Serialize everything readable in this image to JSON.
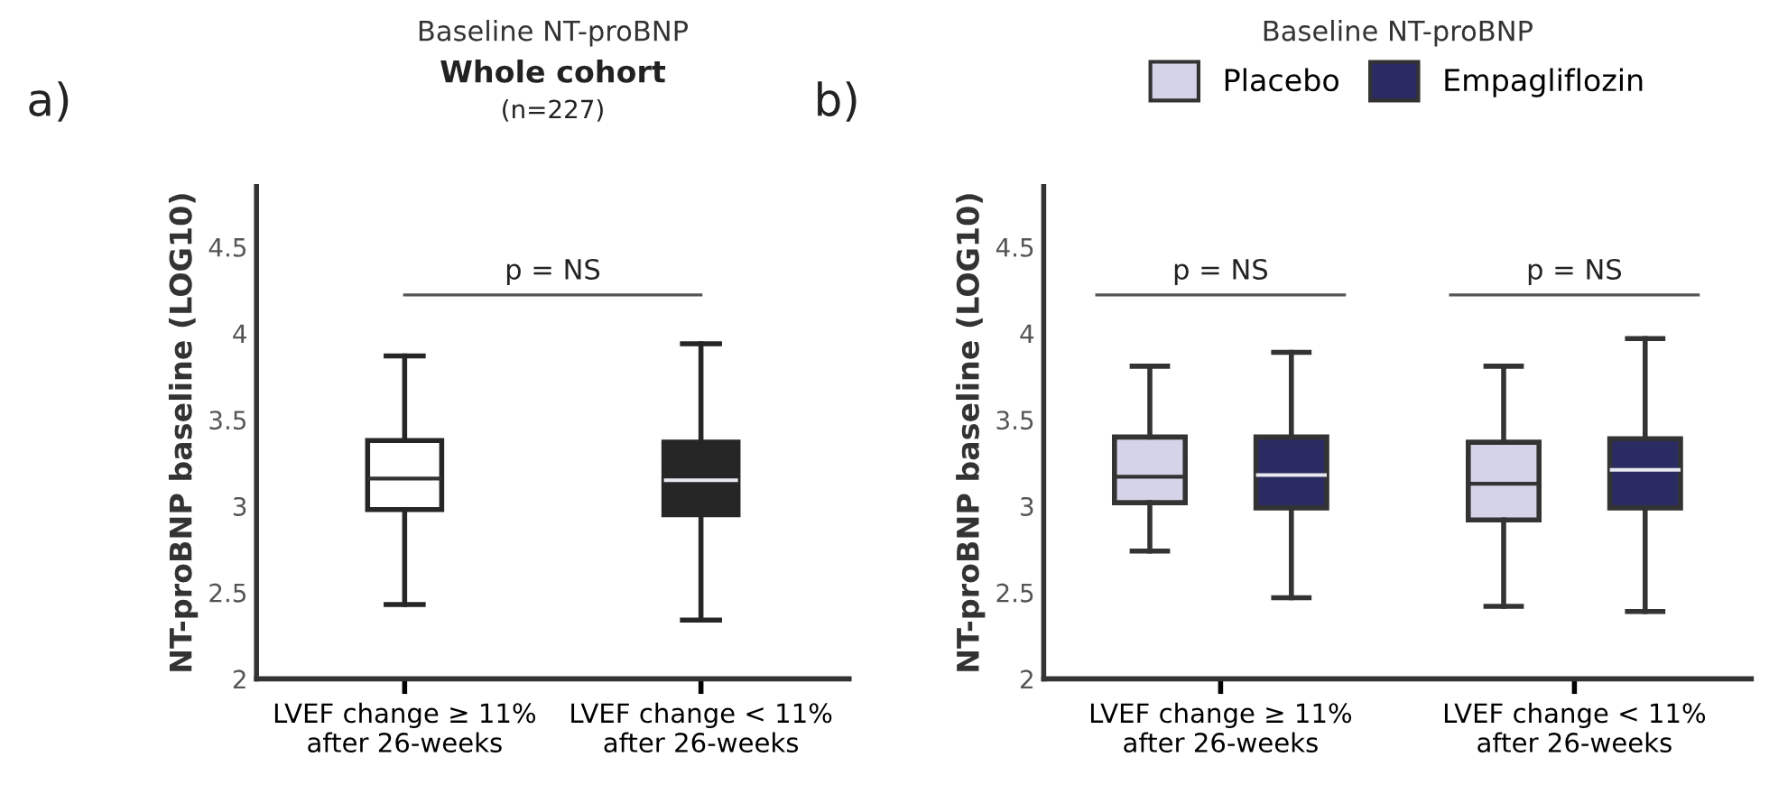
{
  "chart_data": [
    {
      "type": "box",
      "title": "Baseline NT-proBNP",
      "subtitle": "Whole cohort\n(n=227)",
      "ylabel": "NT-proBNP baseline (LOG10)",
      "categories": [
        "LVEF change ≥ 11%\nafter 26-weeks",
        "LVEF change < 11%\nafter 26-weeks"
      ],
      "colors": [
        "#ffffff",
        "#262626"
      ],
      "boxes": [
        {
          "low": 2.43,
          "q1": 2.98,
          "median": 3.16,
          "q3": 3.38,
          "high": 3.87
        },
        {
          "low": 2.34,
          "q1": 2.95,
          "median": 3.15,
          "q3": 3.37,
          "high": 3.94
        }
      ],
      "ylim": [
        2,
        4.85
      ],
      "yticks": [
        2,
        2.5,
        3,
        3.5,
        4,
        4.5
      ],
      "grid": false,
      "annotations": [
        "a)",
        "p = NS"
      ]
    },
    {
      "type": "box",
      "title": "Baseline NT-proBNP",
      "ylabel": "NT-proBNP baseline (LOG10)",
      "categories": [
        "LVEF change ≥ 11%\nafter 26-weeks",
        "LVEF change < 11%\nafter 26-weeks"
      ],
      "series": [
        {
          "name": "Placebo",
          "color": "#d5d3e8",
          "boxes": [
            {
              "low": 2.74,
              "q1": 3.02,
              "median": 3.17,
              "q3": 3.4,
              "high": 3.81
            },
            {
              "low": 2.42,
              "q1": 2.92,
              "median": 3.13,
              "q3": 3.37,
              "high": 3.81
            }
          ]
        },
        {
          "name": "Empagliflozin",
          "color": "#2b2b63",
          "boxes": [
            {
              "low": 2.47,
              "q1": 2.99,
              "median": 3.18,
              "q3": 3.4,
              "high": 3.89
            },
            {
              "low": 2.39,
              "q1": 2.99,
              "median": 3.21,
              "q3": 3.39,
              "high": 3.97
            }
          ]
        }
      ],
      "ylim": [
        2,
        4.85
      ],
      "yticks": [
        2,
        2.5,
        3,
        3.5,
        4,
        4.5
      ],
      "grid": false,
      "legend": "top",
      "annotations": [
        "b)",
        "p = NS",
        "p = NS"
      ]
    }
  ]
}
